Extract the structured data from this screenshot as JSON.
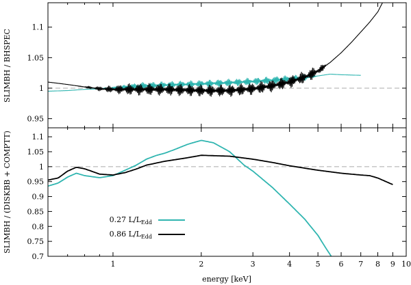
{
  "chart_data": [
    {
      "type": "line",
      "panel": "top",
      "ylabel": "SLIMBH / BHSPEC",
      "xscale": "log",
      "xlim": [
        0.6,
        10
      ],
      "ylim": [
        0.935,
        1.14
      ],
      "yticks": [
        0.95,
        1,
        1.05,
        1.1
      ],
      "ytick_labels": [
        "0.95",
        "1",
        "1.05",
        "1.1"
      ],
      "reference_y": 1,
      "series": [
        {
          "name": "0.27 L/L_Edd",
          "color": "#2fb5b0",
          "x": [
            0.6,
            0.7,
            0.8,
            0.9,
            1.0,
            1.2,
            1.5,
            2.0,
            2.5,
            3.0,
            3.5,
            4.0,
            4.5,
            5.0,
            5.5,
            6.0,
            7.0
          ],
          "y": [
            0.995,
            0.996,
            0.998,
            0.999,
            1.0,
            1.003,
            1.005,
            1.007,
            1.009,
            1.011,
            1.013,
            1.015,
            1.017,
            1.02,
            1.023,
            1.022,
            1.021
          ],
          "oscillation_start": 0.85,
          "oscillation_end": 5.0,
          "oscillation_amplitude": 0.006
        },
        {
          "name": "0.86 L/L_Edd",
          "color": "#000000",
          "x": [
            0.6,
            0.7,
            0.8,
            0.9,
            1.0,
            1.2,
            1.5,
            2.0,
            2.5,
            3.0,
            3.5,
            4.0,
            4.5,
            5.0,
            5.5,
            6.0,
            6.5,
            7.0,
            7.5,
            8.0,
            8.3
          ],
          "y": [
            1.01,
            1.006,
            1.002,
            0.999,
            0.998,
            0.998,
            0.998,
            0.996,
            0.996,
            0.999,
            1.004,
            1.01,
            1.018,
            1.028,
            1.042,
            1.058,
            1.075,
            1.092,
            1.108,
            1.125,
            1.14
          ],
          "oscillation_start": 0.75,
          "oscillation_end": 5.5,
          "oscillation_amplitude": 0.01
        }
      ]
    },
    {
      "type": "line",
      "panel": "bottom",
      "xlabel": "energy [keV]",
      "ylabel": "SLIMBH / (DISKBB + COMPTT)",
      "xscale": "log",
      "xlim": [
        0.6,
        10
      ],
      "ylim": [
        0.7,
        1.13
      ],
      "xticks": [
        1,
        2,
        3,
        4,
        5,
        6,
        7,
        8,
        9,
        10
      ],
      "xtick_labels": [
        "1",
        "2",
        "3",
        "4",
        "5",
        "6",
        "7",
        "8",
        "9",
        "10"
      ],
      "yticks": [
        0.7,
        0.75,
        0.8,
        0.85,
        0.9,
        0.95,
        1,
        1.05,
        1.1
      ],
      "ytick_labels": [
        "0.7",
        "0.75",
        "0.8",
        "0.85",
        "0.9",
        "0.95",
        "1",
        "1.05",
        "1.1"
      ],
      "reference_y": 1,
      "legend": {
        "placement": "bottom-left"
      },
      "series": [
        {
          "name": "0.27 L/L_Edd",
          "label_main": "0.27 L/L",
          "label_sub": "Edd",
          "color": "#2fb5b0",
          "x": [
            0.6,
            0.65,
            0.7,
            0.75,
            0.8,
            0.9,
            1.0,
            1.1,
            1.2,
            1.3,
            1.4,
            1.5,
            1.6,
            1.8,
            2.0,
            2.2,
            2.5,
            2.8,
            3.0,
            3.5,
            4.0,
            4.5,
            5.0,
            5.3,
            5.55
          ],
          "y": [
            0.935,
            0.945,
            0.965,
            0.978,
            0.97,
            0.963,
            0.97,
            0.988,
            1.005,
            1.025,
            1.037,
            1.045,
            1.055,
            1.075,
            1.088,
            1.08,
            1.05,
            1.005,
            0.985,
            0.93,
            0.875,
            0.825,
            0.77,
            0.73,
            0.7
          ]
        },
        {
          "name": "0.86 L/L_Edd",
          "label_main": "0.86 L/L",
          "label_sub": "Edd",
          "color": "#000000",
          "x": [
            0.6,
            0.65,
            0.7,
            0.75,
            0.8,
            0.9,
            1.0,
            1.1,
            1.2,
            1.3,
            1.5,
            1.8,
            2.0,
            2.5,
            3.0,
            3.5,
            4.0,
            5.0,
            6.0,
            7.0,
            7.5,
            8.0,
            9.0
          ],
          "y": [
            0.955,
            0.962,
            0.985,
            0.998,
            0.993,
            0.975,
            0.972,
            0.98,
            0.992,
            1.005,
            1.018,
            1.03,
            1.038,
            1.035,
            1.025,
            1.014,
            1.003,
            0.988,
            0.978,
            0.972,
            0.97,
            0.962,
            0.94
          ]
        }
      ]
    }
  ]
}
